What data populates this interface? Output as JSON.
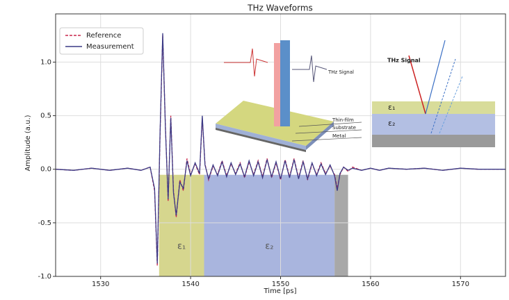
{
  "chart_data": {
    "type": "line",
    "title": "THz Waveforms",
    "x_label": "Time [ps]",
    "y_label": "Amplitude (a.u.)",
    "x": [
      1525,
      1527,
      1529,
      1531,
      1533,
      1534.5,
      1535.5,
      1536,
      1536.3,
      1536.6,
      1536.9,
      1537.2,
      1537.5,
      1537.8,
      1538.1,
      1538.4,
      1538.8,
      1539.2,
      1539.6,
      1540,
      1540.5,
      1541,
      1541.3,
      1541.6,
      1542,
      1542.5,
      1543,
      1543.5,
      1544,
      1544.5,
      1545,
      1545.5,
      1546,
      1546.5,
      1547,
      1547.5,
      1548,
      1548.5,
      1549,
      1549.5,
      1550,
      1550.5,
      1551,
      1551.5,
      1552,
      1552.5,
      1553,
      1553.5,
      1554,
      1554.5,
      1555,
      1555.5,
      1556,
      1556.3,
      1556.6,
      1557,
      1557.5,
      1558,
      1559,
      1560,
      1561,
      1562,
      1564,
      1566,
      1568,
      1570,
      1572,
      1575
    ],
    "series": [
      {
        "name": "Reference",
        "color": "#c8264a",
        "dash": true,
        "values": [
          0,
          -0.01,
          0.01,
          -0.01,
          0.01,
          -0.01,
          0.02,
          -0.2,
          -0.9,
          0.3,
          1.25,
          0.4,
          -0.3,
          0.5,
          -0.2,
          -0.45,
          -0.1,
          -0.2,
          0.1,
          -0.05,
          0.05,
          -0.05,
          0.48,
          0.05,
          -0.1,
          0.03,
          -0.05,
          0.08,
          -0.06,
          0.05,
          -0.04,
          0.06,
          -0.08,
          0.07,
          -0.05,
          0.08,
          -0.07,
          0.1,
          -0.08,
          0.06,
          -0.1,
          0.09,
          -0.07,
          0.1,
          -0.08,
          0.08,
          -0.1,
          0.05,
          -0.05,
          0.06,
          -0.04,
          0.03,
          -0.05,
          -0.18,
          -0.05,
          0.02,
          -0.02,
          0.02,
          -0.01,
          0.01,
          -0.01,
          0.01,
          0,
          0.01,
          -0.01,
          0.01,
          0,
          0
        ]
      },
      {
        "name": "Measurement",
        "color": "#3a3a86",
        "dash": false,
        "values": [
          0,
          -0.01,
          0.01,
          -0.01,
          0.01,
          -0.01,
          0.02,
          -0.18,
          -0.88,
          0.32,
          1.27,
          0.38,
          -0.28,
          0.48,
          -0.22,
          -0.43,
          -0.12,
          -0.18,
          0.08,
          -0.06,
          0.06,
          -0.04,
          0.5,
          0.04,
          -0.09,
          0.04,
          -0.06,
          0.07,
          -0.07,
          0.06,
          -0.05,
          0.05,
          -0.07,
          0.08,
          -0.06,
          0.07,
          -0.08,
          0.09,
          -0.07,
          0.07,
          -0.09,
          0.08,
          -0.08,
          0.09,
          -0.09,
          0.07,
          -0.09,
          0.06,
          -0.06,
          0.05,
          -0.05,
          0.04,
          -0.06,
          -0.2,
          -0.04,
          0.02,
          -0.01,
          0.01,
          -0.01,
          0.01,
          -0.01,
          0.01,
          0,
          0.01,
          -0.01,
          0.01,
          0,
          0
        ]
      }
    ],
    "xlim": [
      1525,
      1575
    ],
    "xticks": [
      1530,
      1540,
      1550,
      1560,
      1570
    ],
    "ylim": [
      -1.0,
      1.45
    ],
    "yticks": [
      {
        "value": -1.0,
        "label": "-1.0"
      },
      {
        "value": -0.5,
        "label": "-0.5"
      },
      {
        "value": 0,
        "label": "0.0"
      },
      {
        "value": 0.5,
        "label": "0.5"
      },
      {
        "value": 1.0,
        "label": "1.0"
      }
    ],
    "grid": true,
    "legend": "upper left",
    "regions": [
      {
        "x": [
          1536.5,
          1541.5
        ],
        "color": "#d6d68e",
        "label": "ε₁"
      },
      {
        "x": [
          1541.5,
          1556
        ],
        "color": "#a9b5de",
        "label": "ε₂"
      },
      {
        "x": [
          1556,
          1557.5
        ],
        "color": "#a8a8a8"
      }
    ],
    "annotations": {
      "sample_signal": "THz Signal",
      "thin_film": "Thin-film",
      "substrate": "Substrate",
      "metal": "Metal",
      "layer_signal": "THz Signal",
      "layer_1": "ε₁",
      "layer_2": "ε₂"
    }
  }
}
